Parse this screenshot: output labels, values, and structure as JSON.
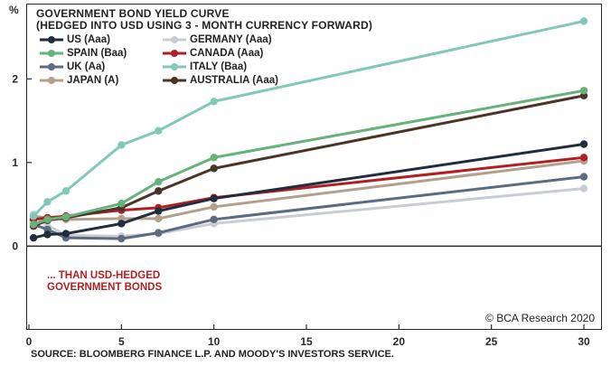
{
  "title_line1": "GOVERNMENT BOND YIELD CURVE",
  "title_line2": "(HEDGED INTO USD USING 3 - MONTH CURRENCY FORWARD)",
  "y_unit": "%",
  "annotation_line1": "... THAN USD-HEDGED",
  "annotation_line2": "GOVERNMENT BONDS",
  "credit": "© BCA Research 2020",
  "source": "SOURCE: BLOOMBERG FINANCE L.P. AND MOODY'S INVESTORS SERVICE.",
  "chart_data": {
    "type": "line",
    "x": [
      0.25,
      1,
      2,
      5,
      7,
      10,
      30
    ],
    "xticks": [
      0,
      5,
      10,
      15,
      20,
      25,
      30
    ],
    "yticks": [
      0,
      1,
      2
    ],
    "xlim": [
      0,
      30
    ],
    "ylim": [
      -1.0,
      2.9
    ],
    "grid": false,
    "series": [
      {
        "name": "US (Aaa)",
        "color": "#1f2d3d",
        "values": [
          0.1,
          0.14,
          0.15,
          0.27,
          0.42,
          0.57,
          1.22
        ]
      },
      {
        "name": "GERMANY (Aaa)",
        "color": "#c8ccd4",
        "values": [
          0.38,
          0.25,
          0.13,
          0.12,
          0.15,
          0.27,
          0.69
        ]
      },
      {
        "name": "SPAIN (Baa)",
        "color": "#66b27a",
        "values": [
          0.26,
          0.32,
          0.35,
          0.51,
          0.77,
          1.06,
          1.86
        ]
      },
      {
        "name": "CANADA (Aaa)",
        "color": "#b01f24",
        "values": [
          0.32,
          0.34,
          0.36,
          0.43,
          0.46,
          0.58,
          1.06
        ]
      },
      {
        "name": "UK (Aa)",
        "color": "#5d6b82",
        "values": [
          0.26,
          0.2,
          0.1,
          0.09,
          0.16,
          0.32,
          0.83
        ]
      },
      {
        "name": "ITALY (Baa)",
        "color": "#82c8b9",
        "values": [
          0.36,
          0.53,
          0.66,
          1.21,
          1.38,
          1.73,
          2.69
        ]
      },
      {
        "name": "JAPAN (A)",
        "color": "#b3a08c",
        "values": [
          0.36,
          0.34,
          0.32,
          0.33,
          0.33,
          0.47,
          1.02
        ]
      },
      {
        "name": "AUSTRALIA (Aaa)",
        "color": "#4a3428",
        "values": [
          0.24,
          0.31,
          0.34,
          0.46,
          0.66,
          0.93,
          1.8
        ]
      }
    ]
  }
}
